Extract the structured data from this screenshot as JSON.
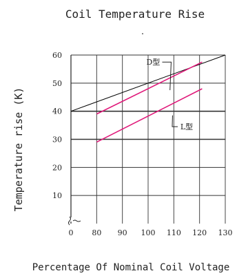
{
  "chart_data": {
    "type": "line",
    "title": "Coil Temperature Rise",
    "xlabel": "Percentage Of Nominal Coil Voltage",
    "ylabel": "Temperature rise (K)",
    "xlim": [
      70,
      130
    ],
    "ylim": [
      0,
      60
    ],
    "x_ticks": [
      0,
      80,
      90,
      100,
      110,
      120,
      130
    ],
    "y_ticks": [
      10,
      20,
      30,
      40,
      50,
      60
    ],
    "grid": true,
    "axis_break": true,
    "series": [
      {
        "name": "D型",
        "points": [
          [
            80,
            39
          ],
          [
            121,
            57.5
          ]
        ],
        "color": "#e0197a"
      },
      {
        "name": "L型",
        "points": [
          [
            80,
            29
          ],
          [
            121,
            48
          ]
        ],
        "color": "#e0197a"
      }
    ],
    "reference_line": {
      "points": [
        [
          70,
          40
        ],
        [
          130,
          60
        ]
      ],
      "color": "#000000"
    },
    "series_labels": [
      {
        "text": "D型",
        "at": [
          102,
          57.5
        ],
        "pointer_to": [
          108.5,
          47.5
        ]
      },
      {
        "text": "L型",
        "at": [
          115,
          34.5
        ],
        "pointer_to": [
          109.5,
          38.5
        ]
      }
    ]
  }
}
